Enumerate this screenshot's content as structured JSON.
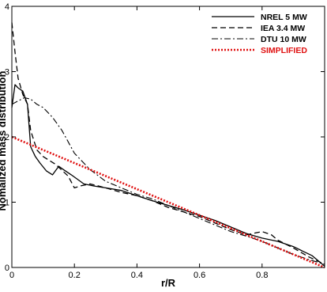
{
  "chart_data": {
    "type": "line",
    "xlabel": "r/R",
    "ylabel": "Nomalized mass distribution",
    "xlim": [
      0,
      1
    ],
    "ylim": [
      0,
      4
    ],
    "x_ticks": [
      0,
      0.2,
      0.4,
      0.6,
      0.8
    ],
    "x_tick_labels": [
      "0",
      "0.2",
      "0.4",
      "0.6",
      "0.8"
    ],
    "y_ticks": [
      0,
      1,
      2,
      3,
      4
    ],
    "y_tick_labels": [
      "0",
      "1",
      "2",
      "3",
      "4"
    ],
    "grid": false,
    "legend_position": "top-right",
    "series": [
      {
        "name": "NREL 5 MW",
        "color": "#000000",
        "dash": "solid",
        "x": [
          0,
          0.01,
          0.02,
          0.035,
          0.05,
          0.06,
          0.075,
          0.09,
          0.11,
          0.13,
          0.15,
          0.165,
          0.19,
          0.21,
          0.23,
          0.26,
          0.3,
          0.35,
          0.4,
          0.45,
          0.5,
          0.55,
          0.6,
          0.65,
          0.7,
          0.75,
          0.8,
          0.85,
          0.9,
          0.93,
          0.96,
          0.985,
          1.0
        ],
        "y": [
          2.45,
          2.8,
          2.75,
          2.7,
          2.5,
          1.85,
          1.7,
          1.6,
          1.48,
          1.42,
          1.55,
          1.5,
          1.42,
          1.35,
          1.28,
          1.25,
          1.22,
          1.18,
          1.1,
          1.02,
          0.95,
          0.88,
          0.8,
          0.72,
          0.62,
          0.52,
          0.45,
          0.4,
          0.32,
          0.25,
          0.18,
          0.08,
          0.02
        ]
      },
      {
        "name": "IEA 3.4 MW",
        "color": "#000000",
        "dash": "dashed",
        "x": [
          0,
          0.01,
          0.02,
          0.035,
          0.05,
          0.06,
          0.08,
          0.1,
          0.14,
          0.18,
          0.2,
          0.22,
          0.25,
          0.3,
          0.35,
          0.4,
          0.45,
          0.5,
          0.55,
          0.6,
          0.65,
          0.7,
          0.75,
          0.8,
          0.83,
          0.85,
          0.9,
          0.95,
          1.0
        ],
        "y": [
          3.75,
          3.3,
          2.9,
          2.65,
          2.5,
          2.1,
          1.8,
          1.7,
          1.58,
          1.4,
          1.22,
          1.25,
          1.28,
          1.22,
          1.15,
          1.1,
          1.02,
          0.92,
          0.85,
          0.78,
          0.68,
          0.58,
          0.5,
          0.55,
          0.5,
          0.42,
          0.3,
          0.16,
          0.05
        ]
      },
      {
        "name": "DTU 10 MW",
        "color": "#000000",
        "dash": "dashdot",
        "x": [
          0,
          0.02,
          0.04,
          0.06,
          0.08,
          0.1,
          0.13,
          0.16,
          0.2,
          0.25,
          0.3,
          0.35,
          0.4,
          0.45,
          0.5,
          0.55,
          0.6,
          0.65,
          0.7,
          0.75,
          0.8,
          0.85,
          0.9,
          0.95,
          1.0
        ],
        "y": [
          2.5,
          2.55,
          2.6,
          2.58,
          2.5,
          2.45,
          2.3,
          2.1,
          1.75,
          1.5,
          1.32,
          1.22,
          1.12,
          1.05,
          0.95,
          0.85,
          0.75,
          0.65,
          0.55,
          0.48,
          0.4,
          0.3,
          0.2,
          0.12,
          0.05
        ]
      },
      {
        "name": "SIMPLIFIED",
        "color": "#e01010",
        "dash": "dotted",
        "x": [
          0,
          1.0
        ],
        "y": [
          2.0,
          0.0
        ]
      }
    ]
  }
}
